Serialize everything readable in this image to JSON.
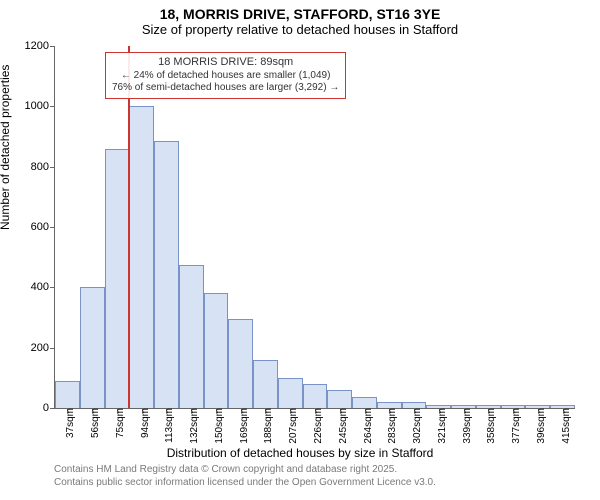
{
  "title": {
    "line1": "18, MORRIS DRIVE, STAFFORD, ST16 3YE",
    "line2": "Size of property relative to detached houses in Stafford"
  },
  "ylabel": "Number of detached properties",
  "xlabel": "Distribution of detached houses by size in Stafford",
  "footer": {
    "line1": "Contains HM Land Registry data © Crown copyright and database right 2025.",
    "line2": "Contains public sector information licensed under the Open Government Licence v3.0."
  },
  "chart": {
    "type": "histogram",
    "background_color": "#ffffff",
    "axis_color": "#666666",
    "ylim": [
      0,
      1200
    ],
    "ytick_step": 200,
    "yticks": [
      0,
      200,
      400,
      600,
      800,
      1000,
      1200
    ],
    "x_categories": [
      "37sqm",
      "56sqm",
      "75sqm",
      "94sqm",
      "113sqm",
      "132sqm",
      "150sqm",
      "169sqm",
      "188sqm",
      "207sqm",
      "226sqm",
      "245sqm",
      "264sqm",
      "283sqm",
      "302sqm",
      "321sqm",
      "339sqm",
      "358sqm",
      "377sqm",
      "396sqm",
      "415sqm"
    ],
    "values": [
      90,
      400,
      860,
      1000,
      885,
      475,
      380,
      295,
      160,
      100,
      80,
      60,
      35,
      20,
      20,
      10,
      10,
      10,
      10,
      10,
      10
    ],
    "bar_fill": "#d7e2f4",
    "bar_stroke": "#7a93c6",
    "bar_width_ratio": 1.0,
    "reference_line": {
      "after_index": 2,
      "color": "#cc342f",
      "width": 2
    },
    "annotation": {
      "title": "18 MORRIS DRIVE: 89sqm",
      "line1": "← 24% of detached houses are smaller (1,049)",
      "line2": "76% of semi-detached houses are larger (3,292) →",
      "border_color": "#cc342f",
      "text_color": "#333333",
      "fontsize": 10
    },
    "label_fontsize": 12,
    "tick_fontsize": 11,
    "footer_color": "#7a7a7a"
  }
}
